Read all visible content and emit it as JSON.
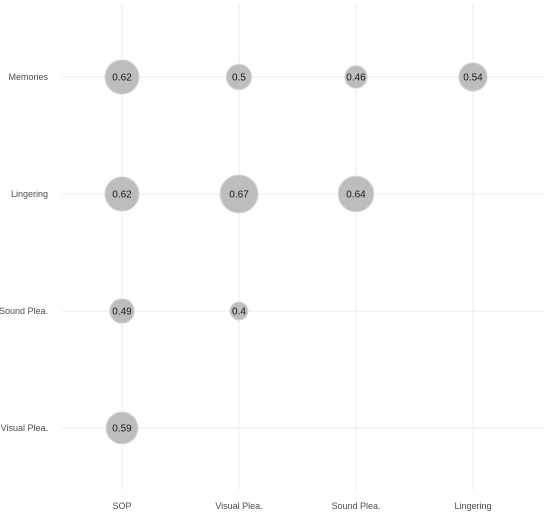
{
  "chart_data": {
    "type": "scatter",
    "title": "",
    "xlabel": "",
    "ylabel": "",
    "x_categories": [
      "SOP",
      "Visual Plea.",
      "Sound Plea.",
      "Lingering"
    ],
    "y_categories": [
      "Visual Plea.",
      "Sound Plea.",
      "Lingering",
      "Memories"
    ],
    "grid": true,
    "legend": "none",
    "bubble_color": "#bdbdbd",
    "points": [
      {
        "x": "SOP",
        "y": "Memories",
        "value": 0.62,
        "label": "0.62"
      },
      {
        "x": "Visual Plea.",
        "y": "Memories",
        "value": 0.5,
        "label": "0.5"
      },
      {
        "x": "Sound Plea.",
        "y": "Memories",
        "value": 0.46,
        "label": "0.46"
      },
      {
        "x": "Lingering",
        "y": "Memories",
        "value": 0.54,
        "label": "0.54"
      },
      {
        "x": "SOP",
        "y": "Lingering",
        "value": 0.62,
        "label": "0.62"
      },
      {
        "x": "Visual Plea.",
        "y": "Lingering",
        "value": 0.67,
        "label": "0.67"
      },
      {
        "x": "Sound Plea.",
        "y": "Lingering",
        "value": 0.64,
        "label": "0.64"
      },
      {
        "x": "SOP",
        "y": "Sound Plea.",
        "value": 0.49,
        "label": "0.49"
      },
      {
        "x": "Visual Plea.",
        "y": "Sound Plea.",
        "value": 0.4,
        "label": "0.4"
      },
      {
        "x": "SOP",
        "y": "Visual Plea.",
        "value": 0.59,
        "label": "0.59"
      }
    ]
  }
}
